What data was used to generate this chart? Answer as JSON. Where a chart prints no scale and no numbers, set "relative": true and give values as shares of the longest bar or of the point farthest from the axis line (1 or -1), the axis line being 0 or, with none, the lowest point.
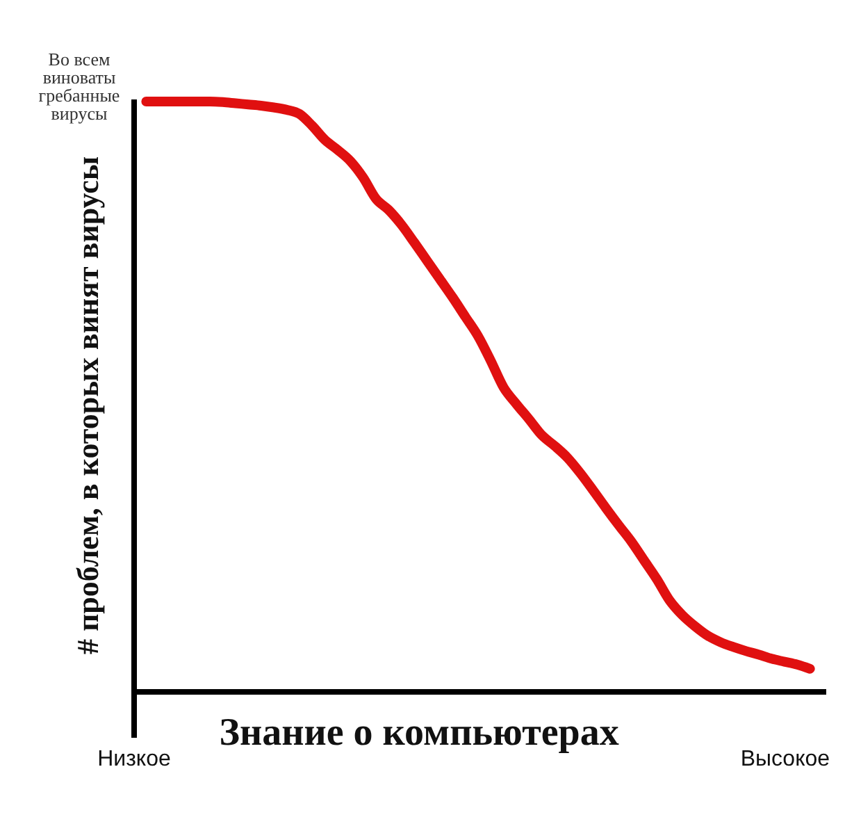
{
  "chart_data": {
    "type": "line",
    "xlabel": "Знание о компьютерах",
    "ylabel": "# проблем, в которых винят вирусы",
    "annotations": [
      "Во всем виноваты гребанные вирусы"
    ],
    "relative": true,
    "categories": [
      "Низкое",
      null,
      null,
      null,
      null,
      null,
      null,
      null,
      null,
      null,
      null,
      null,
      null,
      null,
      null,
      null,
      null,
      null,
      null,
      null,
      null,
      null,
      null,
      null,
      null,
      null,
      null,
      null,
      null,
      null,
      null,
      null,
      null,
      null,
      null,
      null,
      null,
      null,
      null,
      null,
      null,
      null,
      null,
      null,
      null,
      null,
      null,
      null,
      null,
      null,
      null,
      "Высокое",
      null,
      null,
      null
    ],
    "values": [
      null,
      1.0,
      1.0,
      1.0,
      1.0,
      1.0,
      1.0,
      0.999,
      0.997,
      0.995,
      0.993,
      0.99,
      0.986,
      0.979,
      0.959,
      0.935,
      0.918,
      0.899,
      0.871,
      0.835,
      0.816,
      0.791,
      0.761,
      0.73,
      0.699,
      0.668,
      0.635,
      0.602,
      0.56,
      0.515,
      0.487,
      0.461,
      0.434,
      0.416,
      0.396,
      0.37,
      0.341,
      0.311,
      0.282,
      0.254,
      0.222,
      0.19,
      0.154,
      0.129,
      0.11,
      0.094,
      0.083,
      0.075,
      0.068,
      0.062,
      0.055,
      0.05,
      0.045,
      0.038,
      null
    ],
    "color": "#e01010",
    "marker": "none",
    "line_style": "solid"
  }
}
